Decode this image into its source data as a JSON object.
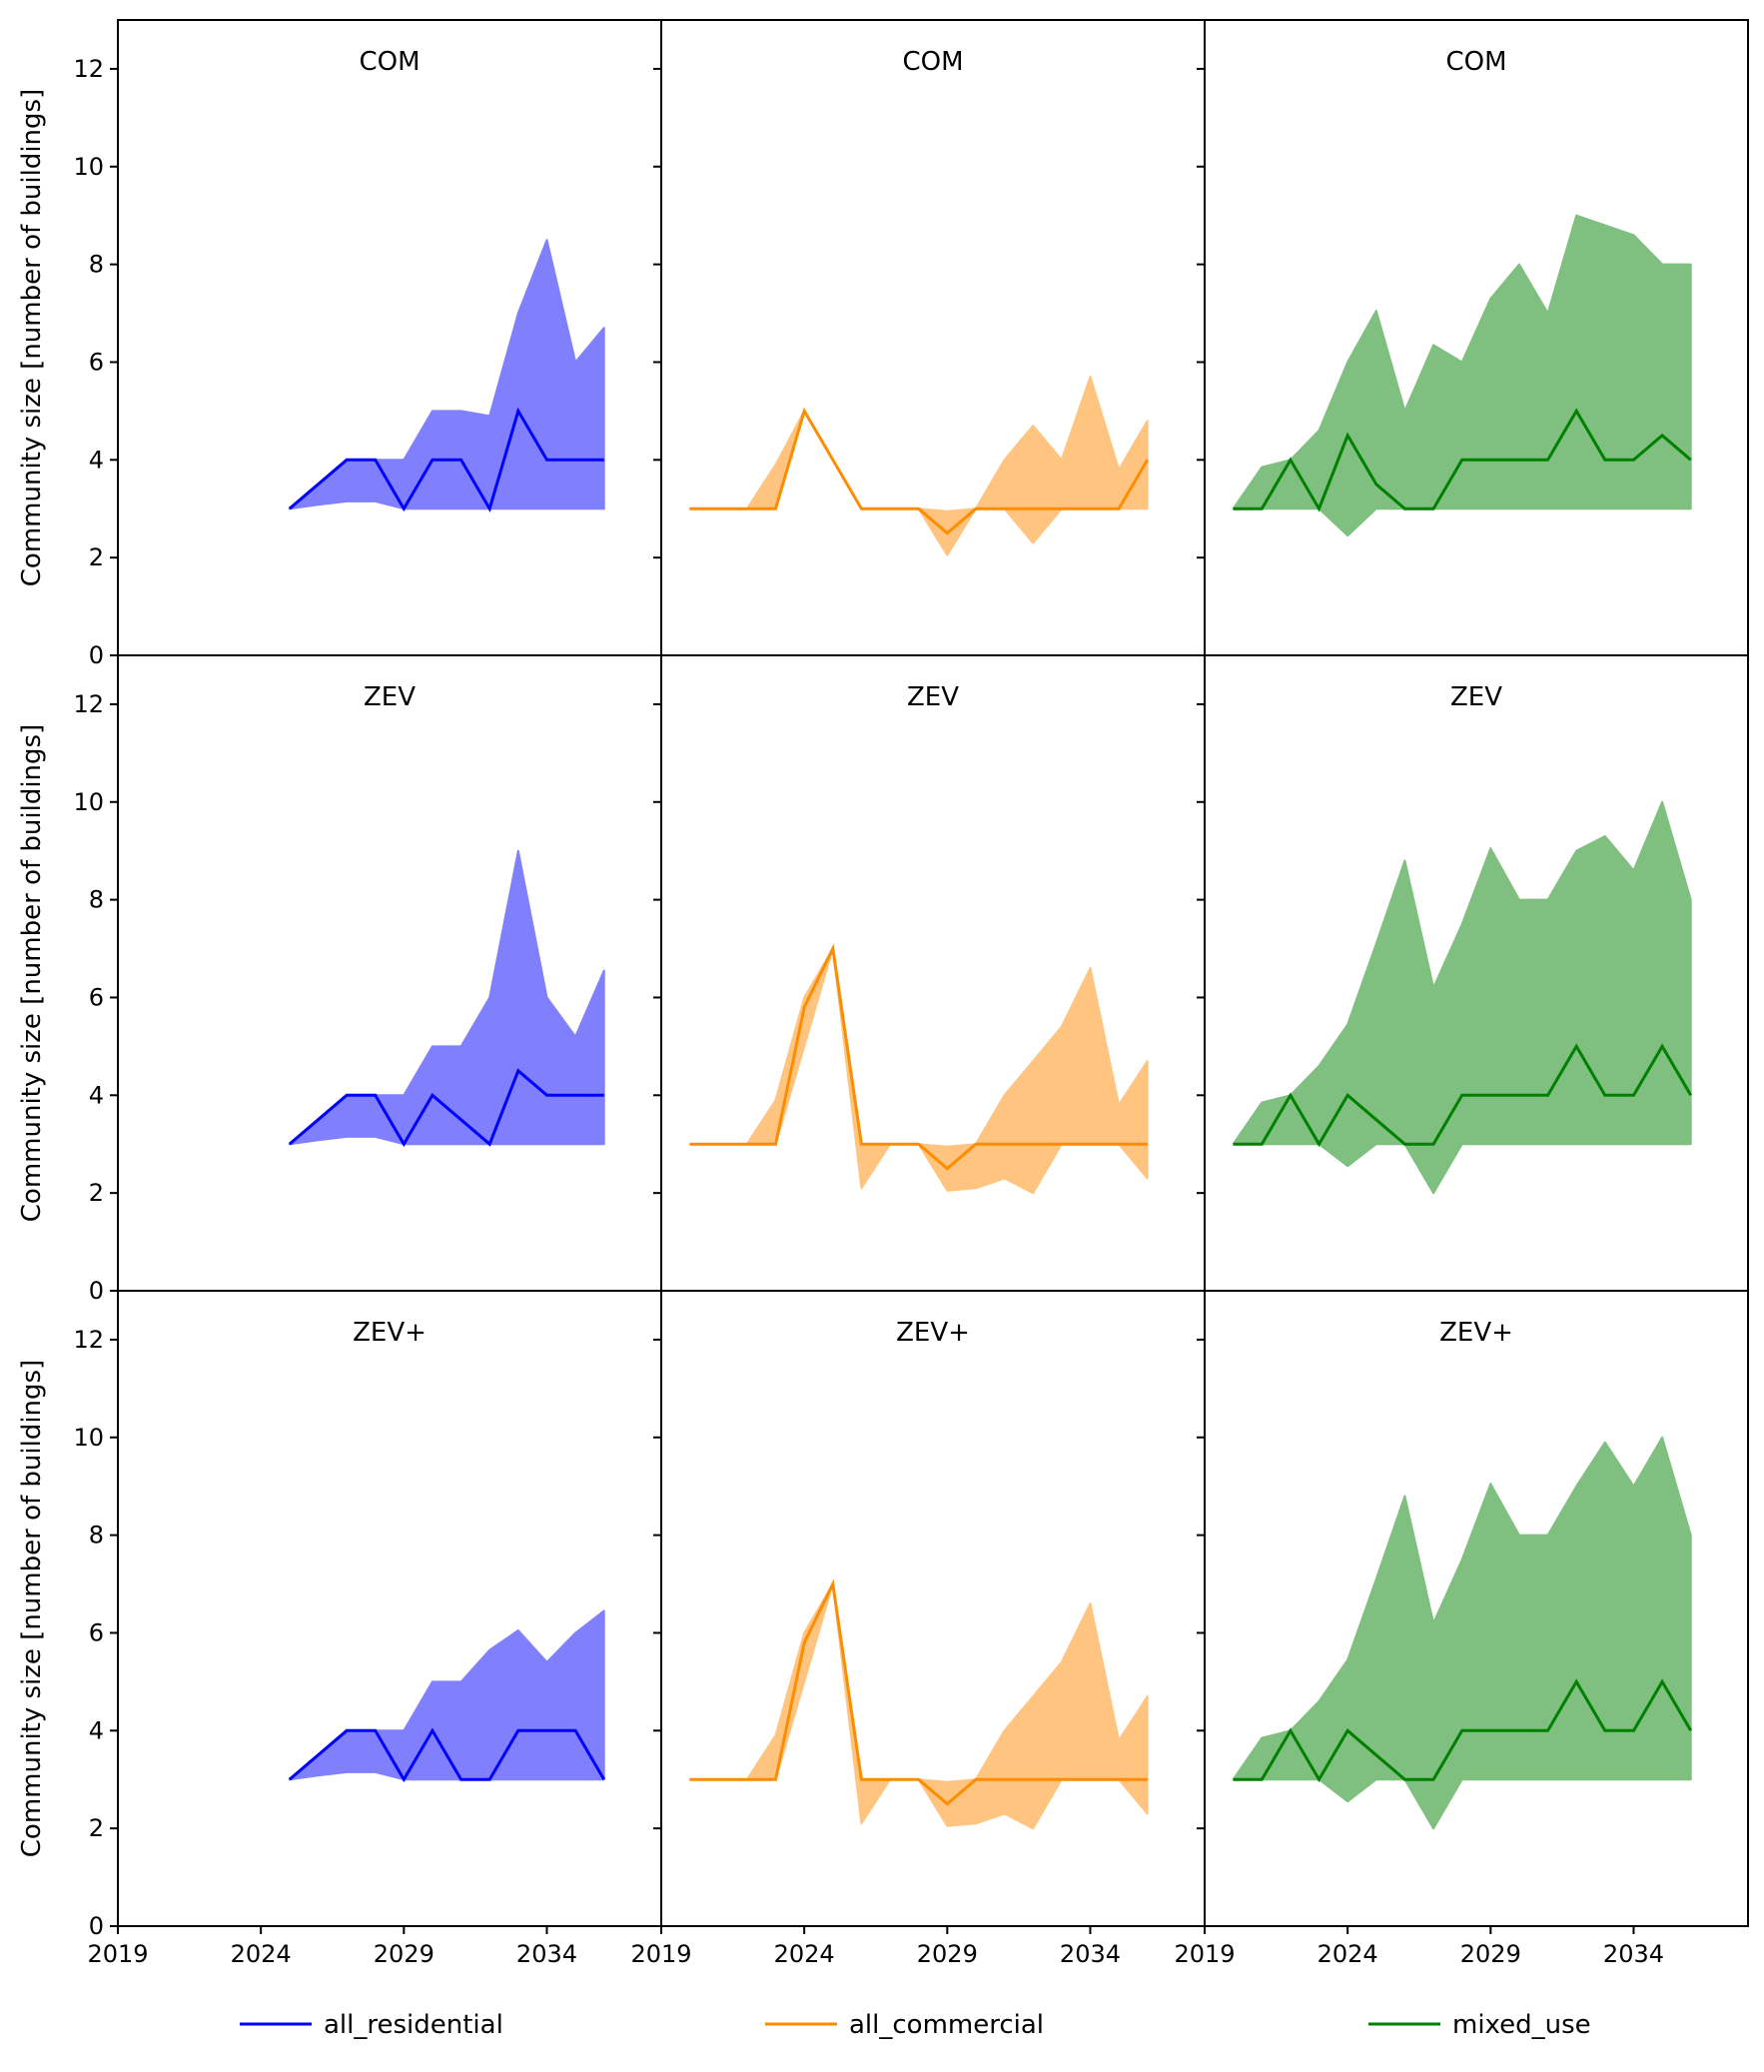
{
  "figure": {
    "ylabel": "Community size [number of buildings]",
    "legend": [
      {
        "name": "all_residential",
        "color": "#0000ff"
      },
      {
        "name": "all_commercial",
        "color": "#ff8c00"
      },
      {
        "name": "mixed_use",
        "color": "#008000"
      }
    ]
  },
  "chart_data": [
    {
      "type": "line",
      "title": "COM",
      "series": "all_residential",
      "color": "#0000ff",
      "fill_color": "#8080ff",
      "x": [
        2025,
        2026,
        2027,
        2028,
        2029,
        2030,
        2031,
        2032,
        2033,
        2034,
        2035,
        2036
      ],
      "median": [
        3,
        3.5,
        4,
        4,
        3,
        4,
        4,
        3,
        5,
        4,
        4,
        4
      ],
      "upper": [
        3,
        3.5,
        4,
        4,
        4,
        5,
        5,
        4.9,
        7,
        8.5,
        6,
        6.7
      ],
      "lower": [
        3,
        3.08,
        3.15,
        3.15,
        3,
        3,
        3,
        3,
        3,
        3,
        3,
        3
      ],
      "xlim": [
        2019,
        2038
      ],
      "ylim": [
        0,
        13
      ],
      "xticks": [
        2019,
        2024,
        2029,
        2034
      ],
      "yticks": [
        0,
        2,
        4,
        6,
        8,
        10,
        12
      ]
    },
    {
      "type": "line",
      "title": "COM",
      "series": "all_commercial",
      "color": "#ff8c00",
      "fill_color": "#ffc47f",
      "x": [
        2020,
        2021,
        2022,
        2023,
        2024,
        2025,
        2026,
        2027,
        2028,
        2029,
        2030,
        2031,
        2032,
        2033,
        2034,
        2035,
        2036
      ],
      "median": [
        3,
        3,
        3,
        3,
        5,
        4,
        3,
        3,
        3,
        2.5,
        3,
        3,
        3,
        3,
        3,
        3,
        4
      ],
      "upper": [
        3,
        3,
        3,
        3.9,
        5,
        4,
        3,
        3,
        3,
        2.95,
        3,
        4,
        4.7,
        4,
        5.7,
        3.8,
        4.8
      ],
      "lower": [
        3,
        3,
        3,
        3,
        5,
        4,
        3,
        3,
        3,
        2.05,
        3,
        3,
        2.3,
        3,
        3,
        3,
        3
      ],
      "xlim": [
        2019,
        2038
      ],
      "ylim": [
        0,
        13
      ],
      "xticks": [
        2019,
        2024,
        2029,
        2034
      ],
      "yticks": [
        0,
        2,
        4,
        6,
        8,
        10,
        12
      ]
    },
    {
      "type": "line",
      "title": "COM",
      "series": "mixed_use",
      "color": "#008000",
      "fill_color": "#7fbf7f",
      "x": [
        2020,
        2021,
        2022,
        2023,
        2024,
        2025,
        2026,
        2027,
        2028,
        2029,
        2030,
        2031,
        2032,
        2033,
        2034,
        2035,
        2036
      ],
      "median": [
        3,
        3,
        4,
        3,
        4.5,
        3.5,
        3,
        3,
        4,
        4,
        4,
        4,
        5,
        4,
        4,
        4.5,
        4
      ],
      "upper": [
        3,
        3.85,
        4,
        4.6,
        6,
        7.05,
        5,
        6.35,
        6,
        7.3,
        8,
        7,
        9,
        8.8,
        8.6,
        8,
        8
      ],
      "lower": [
        3,
        3,
        3,
        3,
        2.45,
        3,
        3,
        3,
        3,
        3,
        3,
        3,
        3,
        3,
        3,
        3,
        3
      ],
      "xlim": [
        2019,
        2038
      ],
      "ylim": [
        0,
        13
      ],
      "xticks": [
        2019,
        2024,
        2029,
        2034
      ],
      "yticks": [
        0,
        2,
        4,
        6,
        8,
        10,
        12
      ]
    },
    {
      "type": "line",
      "title": "ZEV",
      "series": "all_residential",
      "color": "#0000ff",
      "fill_color": "#8080ff",
      "x": [
        2025,
        2026,
        2027,
        2028,
        2029,
        2030,
        2031,
        2032,
        2033,
        2034,
        2035,
        2036
      ],
      "median": [
        3,
        3.5,
        4,
        4,
        3,
        4,
        3.5,
        3,
        4.5,
        4,
        4,
        4
      ],
      "upper": [
        3,
        3.5,
        4,
        4,
        4,
        5,
        5,
        6,
        9,
        6,
        5.2,
        6.55
      ],
      "lower": [
        3,
        3.08,
        3.15,
        3.15,
        3,
        3,
        3,
        3,
        3,
        3,
        3,
        3
      ],
      "xlim": [
        2019,
        2038
      ],
      "ylim": [
        0,
        13
      ],
      "xticks": [
        2019,
        2024,
        2029,
        2034
      ],
      "yticks": [
        0,
        2,
        4,
        6,
        8,
        10,
        12
      ]
    },
    {
      "type": "line",
      "title": "ZEV",
      "series": "all_commercial",
      "color": "#ff8c00",
      "fill_color": "#ffc47f",
      "x": [
        2020,
        2021,
        2022,
        2023,
        2024,
        2025,
        2026,
        2027,
        2028,
        2029,
        2030,
        2031,
        2032,
        2033,
        2034,
        2035,
        2036
      ],
      "median": [
        3,
        3,
        3,
        3,
        5.8,
        7,
        3,
        3,
        3,
        2.5,
        3,
        3,
        3,
        3,
        3,
        3,
        3
      ],
      "upper": [
        3,
        3,
        3,
        3.9,
        6,
        7,
        3,
        3,
        3,
        2.95,
        3,
        4,
        4.7,
        5.4,
        6.6,
        3.8,
        4.7
      ],
      "lower": [
        3,
        3,
        3,
        3,
        5,
        7,
        2.1,
        3,
        3,
        2.05,
        2.1,
        2.3,
        2,
        3,
        3,
        3,
        2.3
      ],
      "xlim": [
        2019,
        2038
      ],
      "ylim": [
        0,
        13
      ],
      "xticks": [
        2019,
        2024,
        2029,
        2034
      ],
      "yticks": [
        0,
        2,
        4,
        6,
        8,
        10,
        12
      ]
    },
    {
      "type": "line",
      "title": "ZEV",
      "series": "mixed_use",
      "color": "#008000",
      "fill_color": "#7fbf7f",
      "x": [
        2020,
        2021,
        2022,
        2023,
        2024,
        2025,
        2026,
        2027,
        2028,
        2029,
        2030,
        2031,
        2032,
        2033,
        2034,
        2035,
        2036
      ],
      "median": [
        3,
        3,
        4,
        3,
        4,
        3.5,
        3,
        3,
        4,
        4,
        4,
        4,
        5,
        4,
        4,
        5,
        4
      ],
      "upper": [
        3,
        3.85,
        4,
        4.6,
        5.45,
        7.1,
        8.8,
        6.2,
        7.5,
        9.05,
        8,
        8,
        9,
        9.3,
        8.6,
        10,
        8
      ],
      "lower": [
        3,
        3,
        3,
        3,
        2.55,
        3,
        3,
        2,
        3,
        3,
        3,
        3,
        3,
        3,
        3,
        3,
        3
      ],
      "xlim": [
        2019,
        2038
      ],
      "ylim": [
        0,
        13
      ],
      "xticks": [
        2019,
        2024,
        2029,
        2034
      ],
      "yticks": [
        0,
        2,
        4,
        6,
        8,
        10,
        12
      ]
    },
    {
      "type": "line",
      "title": "ZEV+",
      "series": "all_residential",
      "color": "#0000ff",
      "fill_color": "#8080ff",
      "x": [
        2025,
        2026,
        2027,
        2028,
        2029,
        2030,
        2031,
        2032,
        2033,
        2034,
        2035,
        2036
      ],
      "median": [
        3,
        3.5,
        4,
        4,
        3,
        4,
        3,
        3,
        4,
        4,
        4,
        3
      ],
      "upper": [
        3,
        3.5,
        4,
        4,
        4,
        5,
        5,
        5.65,
        6.05,
        5.4,
        6,
        6.45
      ],
      "lower": [
        3,
        3.08,
        3.15,
        3.15,
        3,
        3,
        3,
        3,
        3,
        3,
        3,
        3
      ],
      "xlim": [
        2019,
        2038
      ],
      "ylim": [
        0,
        13
      ],
      "xticks": [
        2019,
        2024,
        2029,
        2034
      ],
      "yticks": [
        0,
        2,
        4,
        6,
        8,
        10,
        12
      ]
    },
    {
      "type": "line",
      "title": "ZEV+",
      "series": "all_commercial",
      "color": "#ff8c00",
      "fill_color": "#ffc47f",
      "x": [
        2020,
        2021,
        2022,
        2023,
        2024,
        2025,
        2026,
        2027,
        2028,
        2029,
        2030,
        2031,
        2032,
        2033,
        2034,
        2035,
        2036
      ],
      "median": [
        3,
        3,
        3,
        3,
        5.8,
        7,
        3,
        3,
        3,
        2.5,
        3,
        3,
        3,
        3,
        3,
        3,
        3
      ],
      "upper": [
        3,
        3,
        3,
        3.9,
        6,
        7,
        3,
        3,
        3,
        2.95,
        3,
        4,
        4.7,
        5.4,
        6.6,
        3.8,
        4.7
      ],
      "lower": [
        3,
        3,
        3,
        3,
        5,
        7,
        2.1,
        3,
        3,
        2.05,
        2.1,
        2.3,
        2,
        3,
        3,
        3,
        2.3
      ],
      "xlim": [
        2019,
        2038
      ],
      "ylim": [
        0,
        13
      ],
      "xticks": [
        2019,
        2024,
        2029,
        2034
      ],
      "yticks": [
        0,
        2,
        4,
        6,
        8,
        10,
        12
      ]
    },
    {
      "type": "line",
      "title": "ZEV+",
      "series": "mixed_use",
      "color": "#008000",
      "fill_color": "#7fbf7f",
      "x": [
        2020,
        2021,
        2022,
        2023,
        2024,
        2025,
        2026,
        2027,
        2028,
        2029,
        2030,
        2031,
        2032,
        2033,
        2034,
        2035,
        2036
      ],
      "median": [
        3,
        3,
        4,
        3,
        4,
        3.5,
        3,
        3,
        4,
        4,
        4,
        4,
        5,
        4,
        4,
        5,
        4
      ],
      "upper": [
        3,
        3.85,
        4,
        4.6,
        5.45,
        7.1,
        8.8,
        6.2,
        7.5,
        9.05,
        8,
        8,
        9,
        9.9,
        9,
        10,
        8
      ],
      "lower": [
        3,
        3,
        3,
        3,
        2.55,
        3,
        3,
        2,
        3,
        3,
        3,
        3,
        3,
        3,
        3,
        3,
        3
      ],
      "xlim": [
        2019,
        2038
      ],
      "ylim": [
        0,
        13
      ],
      "xticks": [
        2019,
        2024,
        2029,
        2034
      ],
      "yticks": [
        0,
        2,
        4,
        6,
        8,
        10,
        12
      ]
    }
  ]
}
